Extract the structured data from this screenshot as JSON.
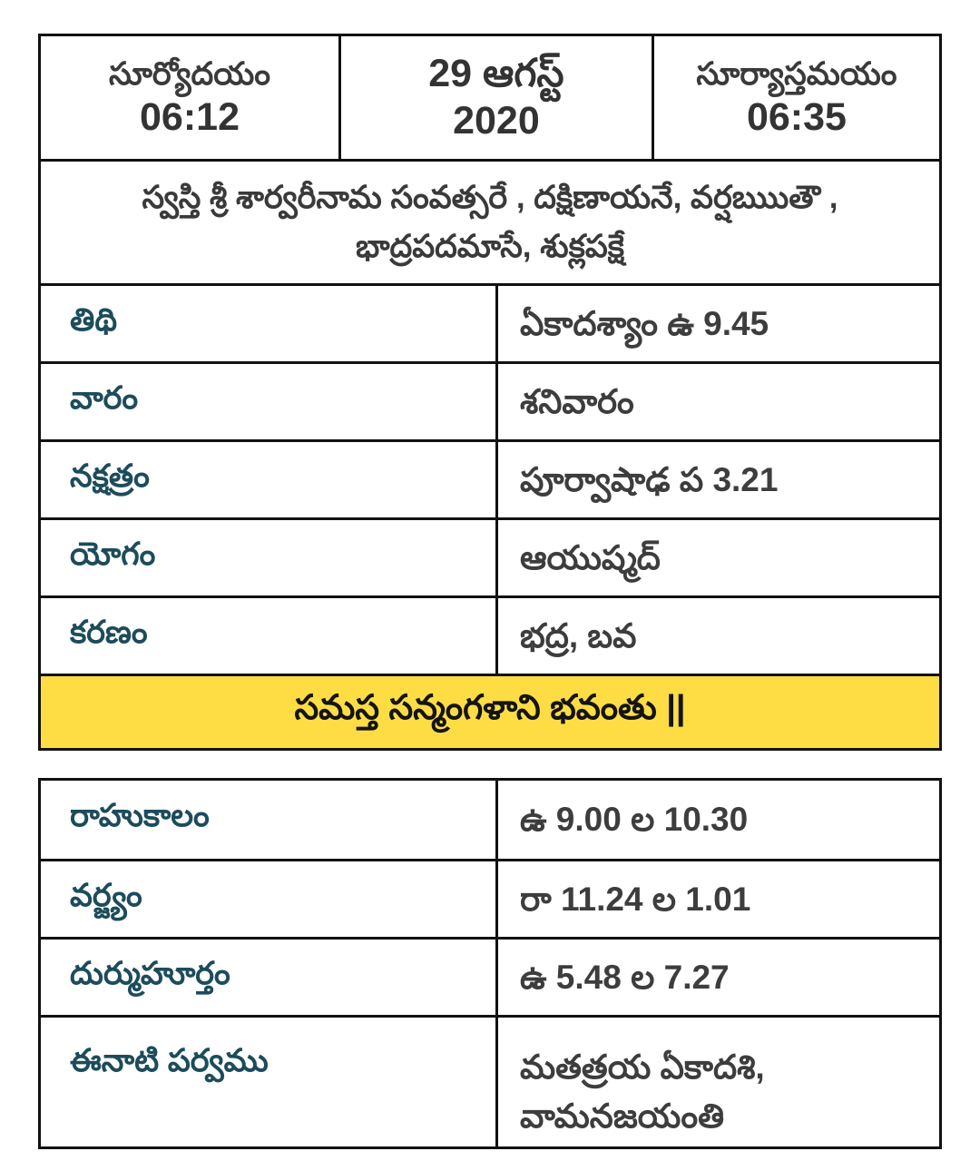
{
  "colors": {
    "label_teal": "#1c4c5b",
    "value_gray": "#3d3d3d",
    "highlight_yellow": "#fedd44",
    "border_black": "#111111"
  },
  "header": {
    "sunrise": {
      "label": "సూర్యోదయం",
      "time": "06:12"
    },
    "date": {
      "line1": "29 ఆగస్ట్",
      "line2": "2020"
    },
    "sunset": {
      "label": "సూర్యాస్తమయం",
      "time": "06:35"
    }
  },
  "samvatsara": {
    "line1": "స్వస్తి శ్రీ శార్వరీనామ సంవత్సరే , దక్షిణాయనే, వర్షఋుతౌ ,",
    "line2": "భాద్రపదమాసే, శుక్లపక్షే"
  },
  "panchangam_rows": [
    {
      "label": "తిథి",
      "value": "ఏకాదశ్యాం ఉ 9.45"
    },
    {
      "label": "వారం",
      "value": "శనివారం"
    },
    {
      "label": "నక్షత్రం",
      "value": "పూర్వాషాఢ ప 3.21"
    },
    {
      "label": "యోగం",
      "value": "ఆయుష్మద్"
    },
    {
      "label": "కరణం",
      "value": "భద్ర, బవ"
    }
  ],
  "blessing": "సమస్త సన్మంగళాని భవంతు ||",
  "timings_rows": [
    {
      "label": "రాహుకాలం",
      "value": "ఉ 9.00 ల 10.30"
    },
    {
      "label": "వర్జ్యం",
      "value": "రా 11.24 ల 1.01"
    },
    {
      "label": "దుర్ముహూర్తం",
      "value": "ఉ 5.48 ల 7.27"
    },
    {
      "label": "ఈనాటి పర్వము",
      "value": "మతత్రయ ఏకాదశి,\nవామనజయంతి"
    }
  ]
}
